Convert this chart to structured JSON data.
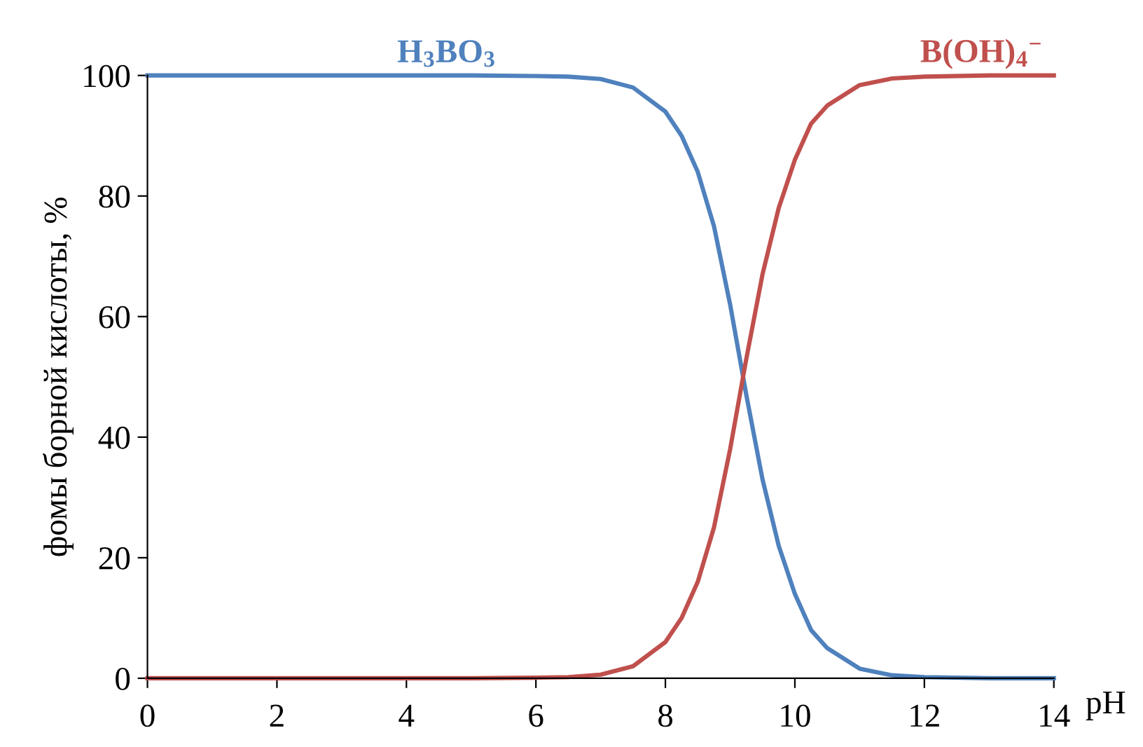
{
  "chart_data": {
    "type": "line",
    "xlabel": "pH",
    "ylabel": "фомы борной кислоты, %",
    "x": [
      0,
      1,
      2,
      3,
      4,
      5,
      6,
      6.5,
      7,
      7.5,
      8,
      8.25,
      8.5,
      8.75,
      9,
      9.25,
      9.5,
      9.75,
      10,
      10.25,
      10.5,
      11,
      11.5,
      12,
      13,
      14
    ],
    "series": [
      {
        "name": "H$_{3}$BO$_{3}$",
        "color": "#4f81bd",
        "values": [
          100,
          100,
          100,
          100,
          100,
          100,
          99.9,
          99.8,
          99.4,
          98,
          94,
          90,
          84,
          75,
          62,
          47,
          33,
          22,
          14,
          8,
          5,
          1.6,
          0.5,
          0.2,
          0,
          0
        ]
      },
      {
        "name": "B(OH)$_{4}$$^{−}$",
        "color": "#c0504d",
        "values": [
          0,
          0,
          0,
          0,
          0,
          0,
          0.1,
          0.2,
          0.6,
          2,
          6,
          10,
          16,
          25,
          38,
          53,
          67,
          78,
          86,
          92,
          95,
          98.4,
          99.5,
          99.8,
          100,
          100
        ]
      }
    ],
    "xlim": [
      0,
      14
    ],
    "xticks": [
      0,
      2,
      4,
      6,
      8,
      10,
      12,
      14
    ],
    "ylim": [
      0,
      100
    ],
    "yticks": [
      0,
      20,
      40,
      60,
      80,
      100
    ],
    "grid": false,
    "legend": false,
    "marker": "none",
    "line_style": "solid"
  }
}
